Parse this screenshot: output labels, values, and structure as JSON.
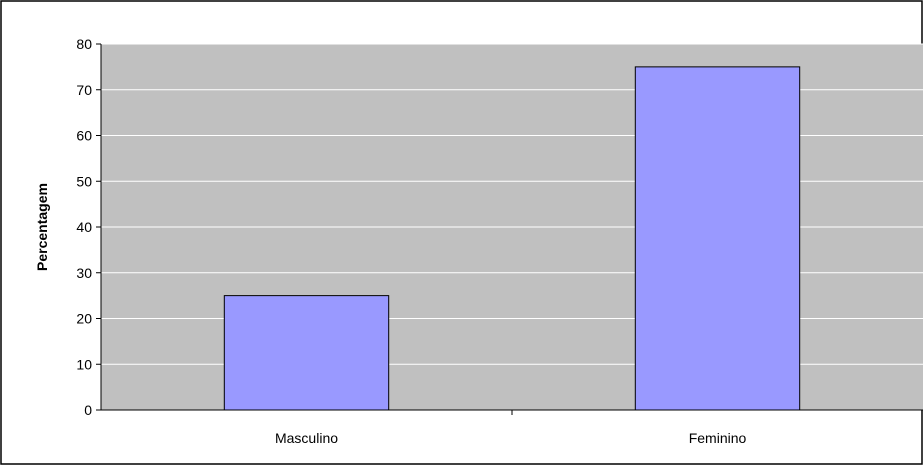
{
  "chart_data": {
    "type": "bar",
    "title": "",
    "xlabel": "",
    "ylabel": "Percentagem",
    "categories": [
      "Masculino",
      "Feminino"
    ],
    "values": [
      25,
      75
    ],
    "ylim": [
      0,
      80
    ],
    "yticks": [
      0,
      10,
      20,
      30,
      40,
      50,
      60,
      70,
      80
    ],
    "grid": true,
    "legend": "none",
    "colors": {
      "plot_background": "#c0c0c0",
      "bar_fill": "#9999ff",
      "bar_stroke": "#000000",
      "gridline": "#ffffff",
      "frame": "#000000"
    }
  }
}
